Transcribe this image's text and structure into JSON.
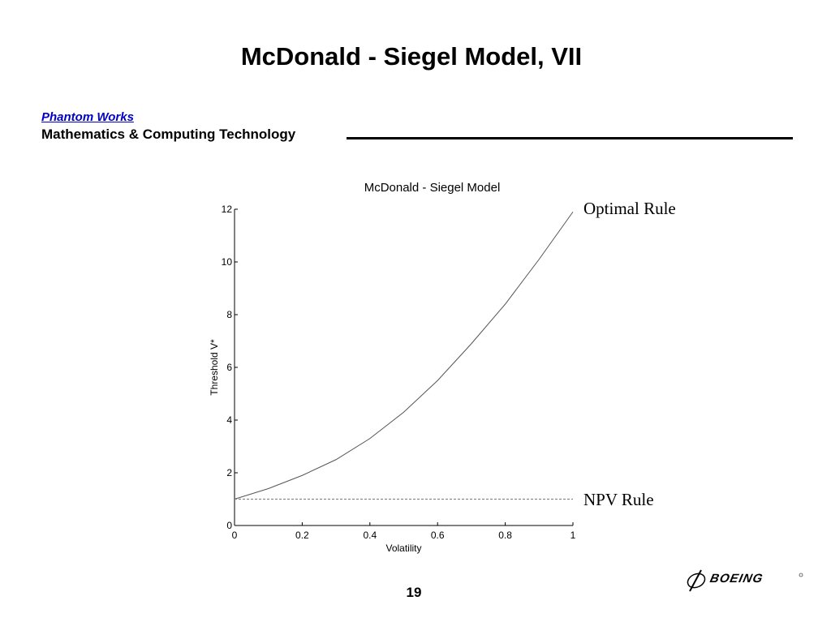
{
  "slide": {
    "title": "McDonald - Siegel Model, VII",
    "brand": "Phantom Works",
    "department": "Mathematics & Computing Technology",
    "page_number": "19",
    "logo_text": "BOEING"
  },
  "colors": {
    "brand": "#0000cc",
    "optimal_curve": "#555555",
    "npv_line": "#777777"
  },
  "annotations": {
    "optimal": "Optimal Rule",
    "npv": "NPV Rule"
  },
  "chart_data": {
    "type": "line",
    "title": "McDonald - Siegel Model",
    "xlabel": "Volatility",
    "ylabel": "Threshold V*",
    "xlim": [
      0,
      1
    ],
    "ylim": [
      0,
      12
    ],
    "xticks": [
      "0",
      "0.2",
      "0.4",
      "0.6",
      "0.8",
      "1"
    ],
    "yticks": [
      "0",
      "2",
      "4",
      "6",
      "8",
      "10",
      "12"
    ],
    "grid": false,
    "series": [
      {
        "x": [
          0,
          0.1,
          0.2,
          0.3,
          0.4,
          0.5,
          0.6,
          0.7,
          0.8,
          0.9,
          1.0
        ],
        "y": [
          1.0,
          1.4,
          1.9,
          2.5,
          3.3,
          4.3,
          5.5,
          6.9,
          8.4,
          10.1,
          11.9
        ],
        "style": "solid"
      },
      {
        "x": [
          0,
          1
        ],
        "y": [
          1.0,
          1.0
        ],
        "style": "dashed"
      }
    ]
  }
}
